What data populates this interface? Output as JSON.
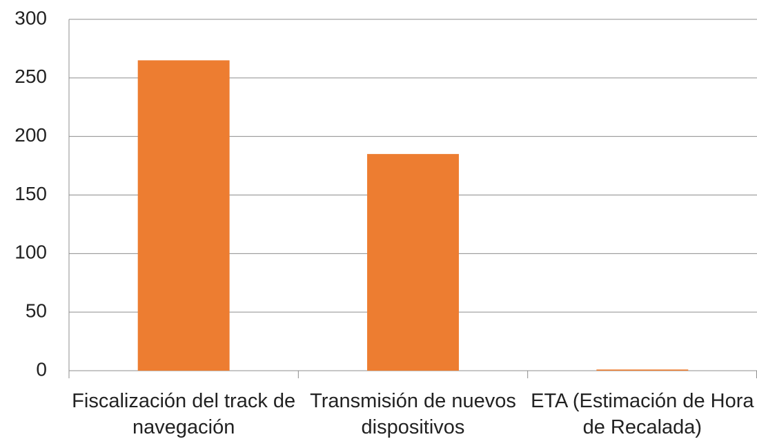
{
  "chart_data": {
    "type": "bar",
    "categories": [
      "Fiscalización del track de navegación",
      "Transmisión de nuevos dispositivos",
      "ETA (Estimación de Hora de Recalada)"
    ],
    "values": [
      265,
      185,
      1
    ],
    "color": "#ed7d31",
    "ylim": [
      0,
      300
    ],
    "yticks": [
      0,
      50,
      100,
      150,
      200,
      250,
      300
    ],
    "grid": true
  }
}
